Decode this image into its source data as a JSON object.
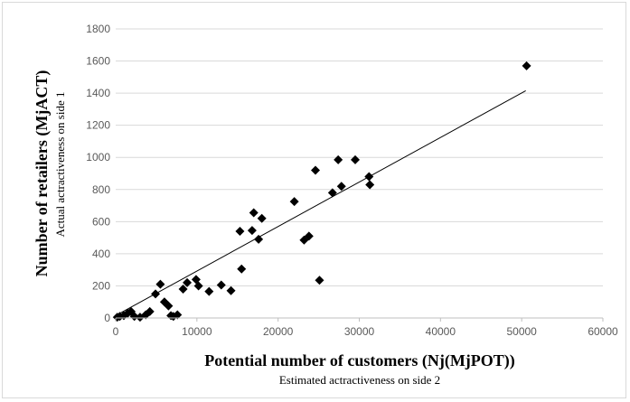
{
  "chart_data": {
    "type": "scatter",
    "title": "",
    "xlabel": "Potential number  of customers (Nj(MjPOT))",
    "xlabel_sub": "Estimated  actractiveness on side 2",
    "ylabel": "Number  of retailers (MjACT)",
    "ylabel_sub": "Actual actractiveness on side 1",
    "xlim": [
      0,
      60000
    ],
    "ylim": [
      0,
      1800
    ],
    "x_ticks": [
      "0",
      "10000",
      "20000",
      "30000",
      "40000",
      "50000",
      "60000"
    ],
    "y_ticks": [
      "0",
      "200",
      "400",
      "600",
      "800",
      "1000",
      "1200",
      "1400",
      "1600",
      "1800"
    ],
    "grid": {
      "horizontal": true,
      "vertical": false
    },
    "marker": "diamond",
    "marker_color": "#000000",
    "trendline": {
      "type": "linear",
      "x": [
        0,
        50500
      ],
      "y": [
        15,
        1415
      ],
      "color": "#000000"
    },
    "series": [
      {
        "points": [
          [
            200,
            5
          ],
          [
            500,
            10
          ],
          [
            1000,
            15
          ],
          [
            1500,
            30
          ],
          [
            1900,
            40
          ],
          [
            2300,
            10
          ],
          [
            3000,
            5
          ],
          [
            3700,
            20
          ],
          [
            4200,
            40
          ],
          [
            4900,
            150
          ],
          [
            5500,
            210
          ],
          [
            6000,
            100
          ],
          [
            6500,
            75
          ],
          [
            6800,
            15
          ],
          [
            7100,
            10
          ],
          [
            7600,
            20
          ],
          [
            8300,
            180
          ],
          [
            8800,
            220
          ],
          [
            9900,
            240
          ],
          [
            10200,
            200
          ],
          [
            11500,
            165
          ],
          [
            13000,
            205
          ],
          [
            14200,
            170
          ],
          [
            15300,
            540
          ],
          [
            15500,
            305
          ],
          [
            16800,
            545
          ],
          [
            17000,
            655
          ],
          [
            17600,
            490
          ],
          [
            18000,
            620
          ],
          [
            22000,
            725
          ],
          [
            23200,
            485
          ],
          [
            23800,
            510
          ],
          [
            24600,
            920
          ],
          [
            25100,
            235
          ],
          [
            26700,
            780
          ],
          [
            27400,
            985
          ],
          [
            27800,
            820
          ],
          [
            29500,
            985
          ],
          [
            31200,
            880
          ],
          [
            31300,
            830
          ],
          [
            50600,
            1570
          ]
        ]
      }
    ]
  }
}
